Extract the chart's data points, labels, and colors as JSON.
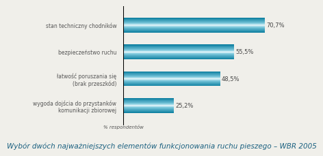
{
  "categories": [
    "stan techniczny chodników",
    "bezpieczeństwo ruchu",
    "łatwość poruszania się\n(brak przeszkód)",
    "wygoda dojścia do przystanków\nkomunikacji zbiorowej"
  ],
  "values": [
    70.7,
    55.5,
    48.5,
    25.2
  ],
  "labels": [
    "70,7%",
    "55,5%",
    "48,5%",
    "25,2%"
  ],
  "bar_color_dark": "#0d7fa0",
  "bar_color_light": "#7dd8ee",
  "bar_color_mid": "#c8f0f8",
  "background_color": "#f0efea",
  "xlabel": "% respondentów",
  "title": "Wybór dwóch najważniejszych elementów funkcjonowania ruchu pieszego – WBR 2005",
  "xlim": [
    0,
    80
  ],
  "title_fontsize": 7.5,
  "label_fontsize": 6.0,
  "ylabel_fontsize": 5.5,
  "xlabel_fontsize": 5.0,
  "bar_height": 0.55
}
